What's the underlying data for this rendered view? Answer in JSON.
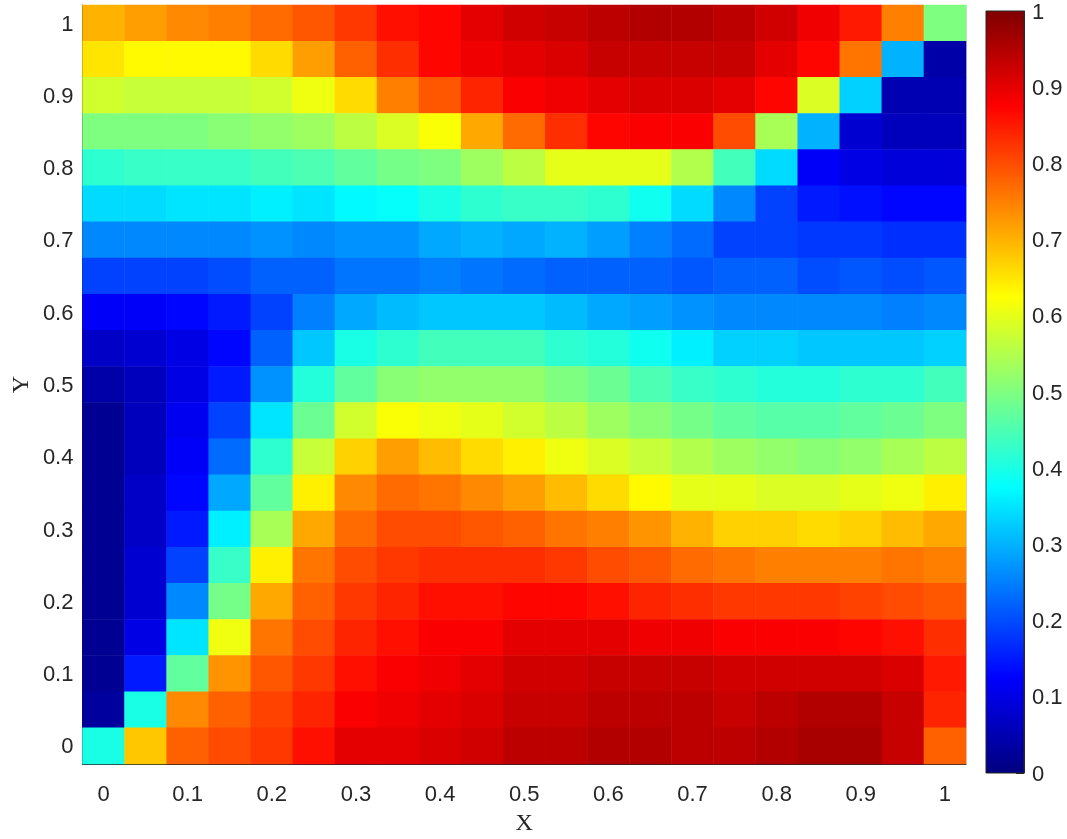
{
  "chart_data": {
    "type": "heatmap",
    "xlabel": "X",
    "ylabel": "Y",
    "categories": [
      "0",
      null,
      "0.1",
      null,
      "0.2",
      null,
      "0.3",
      null,
      "0.4",
      null,
      "0.5",
      null,
      "0.6",
      null,
      "0.7",
      null,
      "0.8",
      null,
      "0.9",
      null,
      "1"
    ],
    "y_categories": [
      "1",
      null,
      "0.9",
      null,
      "0.8",
      null,
      "0.7",
      null,
      "0.6",
      null,
      "0.5",
      null,
      "0.4",
      null,
      "0.3",
      null,
      "0.2",
      null,
      "0.1",
      null,
      "0"
    ],
    "clim": [
      0,
      1
    ],
    "cticks": [
      0,
      0.1,
      0.2,
      0.3,
      0.4,
      0.5,
      0.6,
      0.7,
      0.8,
      0.9,
      1
    ],
    "cells": [
      [
        0.7,
        0.72,
        0.74,
        0.75,
        0.77,
        0.79,
        0.82,
        0.86,
        0.87,
        0.9,
        0.92,
        0.93,
        0.94,
        0.95,
        0.95,
        0.94,
        0.92,
        0.89,
        0.85,
        0.75,
        0.5
      ],
      [
        0.65,
        0.63,
        0.63,
        0.63,
        0.66,
        0.72,
        0.78,
        0.83,
        0.87,
        0.89,
        0.9,
        0.91,
        0.93,
        0.93,
        0.93,
        0.93,
        0.9,
        0.87,
        0.76,
        0.3,
        0.04
      ],
      [
        0.58,
        0.57,
        0.57,
        0.57,
        0.58,
        0.61,
        0.66,
        0.75,
        0.79,
        0.84,
        0.88,
        0.89,
        0.9,
        0.91,
        0.91,
        0.9,
        0.87,
        0.59,
        0.33,
        0.05,
        0.05
      ],
      [
        0.5,
        0.5,
        0.5,
        0.51,
        0.52,
        0.53,
        0.56,
        0.59,
        0.62,
        0.71,
        0.77,
        0.83,
        0.87,
        0.88,
        0.88,
        0.8,
        0.54,
        0.3,
        0.08,
        0.06,
        0.06
      ],
      [
        0.42,
        0.43,
        0.43,
        0.43,
        0.44,
        0.45,
        0.47,
        0.49,
        0.5,
        0.53,
        0.56,
        0.6,
        0.6,
        0.6,
        0.55,
        0.44,
        0.34,
        0.12,
        0.1,
        0.09,
        0.09
      ],
      [
        0.34,
        0.34,
        0.35,
        0.35,
        0.36,
        0.35,
        0.37,
        0.38,
        0.4,
        0.42,
        0.43,
        0.43,
        0.42,
        0.39,
        0.34,
        0.26,
        0.19,
        0.15,
        0.14,
        0.13,
        0.13
      ],
      [
        0.26,
        0.26,
        0.26,
        0.26,
        0.27,
        0.26,
        0.27,
        0.27,
        0.29,
        0.3,
        0.29,
        0.3,
        0.28,
        0.25,
        0.23,
        0.19,
        0.19,
        0.18,
        0.18,
        0.17,
        0.17
      ],
      [
        0.19,
        0.19,
        0.19,
        0.2,
        0.22,
        0.22,
        0.24,
        0.24,
        0.25,
        0.24,
        0.23,
        0.22,
        0.22,
        0.22,
        0.21,
        0.22,
        0.22,
        0.2,
        0.21,
        0.2,
        0.21
      ],
      [
        0.12,
        0.12,
        0.13,
        0.15,
        0.19,
        0.25,
        0.29,
        0.31,
        0.32,
        0.32,
        0.32,
        0.31,
        0.29,
        0.28,
        0.27,
        0.26,
        0.26,
        0.26,
        0.26,
        0.25,
        0.26
      ],
      [
        0.07,
        0.08,
        0.1,
        0.13,
        0.22,
        0.32,
        0.4,
        0.42,
        0.44,
        0.44,
        0.44,
        0.42,
        0.41,
        0.39,
        0.36,
        0.33,
        0.33,
        0.32,
        0.32,
        0.32,
        0.33
      ],
      [
        0.04,
        0.06,
        0.1,
        0.15,
        0.27,
        0.41,
        0.47,
        0.51,
        0.52,
        0.52,
        0.52,
        0.5,
        0.48,
        0.45,
        0.43,
        0.42,
        0.41,
        0.41,
        0.42,
        0.42,
        0.44
      ],
      [
        0.02,
        0.06,
        0.11,
        0.19,
        0.35,
        0.48,
        0.58,
        0.62,
        0.61,
        0.6,
        0.58,
        0.56,
        0.53,
        0.51,
        0.49,
        0.47,
        0.46,
        0.46,
        0.47,
        0.48,
        0.5
      ],
      [
        0.02,
        0.06,
        0.12,
        0.23,
        0.42,
        0.57,
        0.67,
        0.72,
        0.69,
        0.66,
        0.64,
        0.61,
        0.59,
        0.57,
        0.55,
        0.53,
        0.52,
        0.51,
        0.52,
        0.54,
        0.56
      ],
      [
        0.02,
        0.07,
        0.13,
        0.29,
        0.47,
        0.64,
        0.74,
        0.77,
        0.76,
        0.74,
        0.72,
        0.69,
        0.66,
        0.63,
        0.6,
        0.6,
        0.59,
        0.59,
        0.6,
        0.61,
        0.64
      ],
      [
        0.02,
        0.07,
        0.15,
        0.36,
        0.54,
        0.71,
        0.77,
        0.8,
        0.8,
        0.79,
        0.78,
        0.76,
        0.75,
        0.73,
        0.7,
        0.67,
        0.67,
        0.66,
        0.67,
        0.69,
        0.71
      ],
      [
        0.02,
        0.08,
        0.19,
        0.43,
        0.64,
        0.76,
        0.8,
        0.82,
        0.83,
        0.83,
        0.83,
        0.82,
        0.8,
        0.79,
        0.77,
        0.76,
        0.75,
        0.75,
        0.75,
        0.76,
        0.75
      ],
      [
        0.02,
        0.08,
        0.26,
        0.49,
        0.71,
        0.78,
        0.82,
        0.84,
        0.86,
        0.86,
        0.87,
        0.87,
        0.86,
        0.84,
        0.83,
        0.82,
        0.82,
        0.82,
        0.81,
        0.8,
        0.79
      ],
      [
        0.02,
        0.1,
        0.35,
        0.61,
        0.76,
        0.8,
        0.84,
        0.86,
        0.88,
        0.88,
        0.9,
        0.9,
        0.9,
        0.89,
        0.89,
        0.88,
        0.88,
        0.88,
        0.87,
        0.86,
        0.83
      ],
      [
        0.02,
        0.15,
        0.47,
        0.73,
        0.79,
        0.82,
        0.86,
        0.88,
        0.89,
        0.9,
        0.92,
        0.92,
        0.93,
        0.93,
        0.93,
        0.92,
        0.92,
        0.92,
        0.92,
        0.91,
        0.85
      ],
      [
        0.03,
        0.4,
        0.74,
        0.78,
        0.81,
        0.84,
        0.88,
        0.89,
        0.9,
        0.91,
        0.93,
        0.93,
        0.94,
        0.94,
        0.94,
        0.93,
        0.94,
        0.95,
        0.95,
        0.93,
        0.84
      ],
      [
        0.4,
        0.68,
        0.78,
        0.8,
        0.82,
        0.86,
        0.9,
        0.9,
        0.91,
        0.92,
        0.94,
        0.94,
        0.95,
        0.95,
        0.94,
        0.94,
        0.95,
        0.96,
        0.96,
        0.93,
        0.78
      ]
    ]
  }
}
